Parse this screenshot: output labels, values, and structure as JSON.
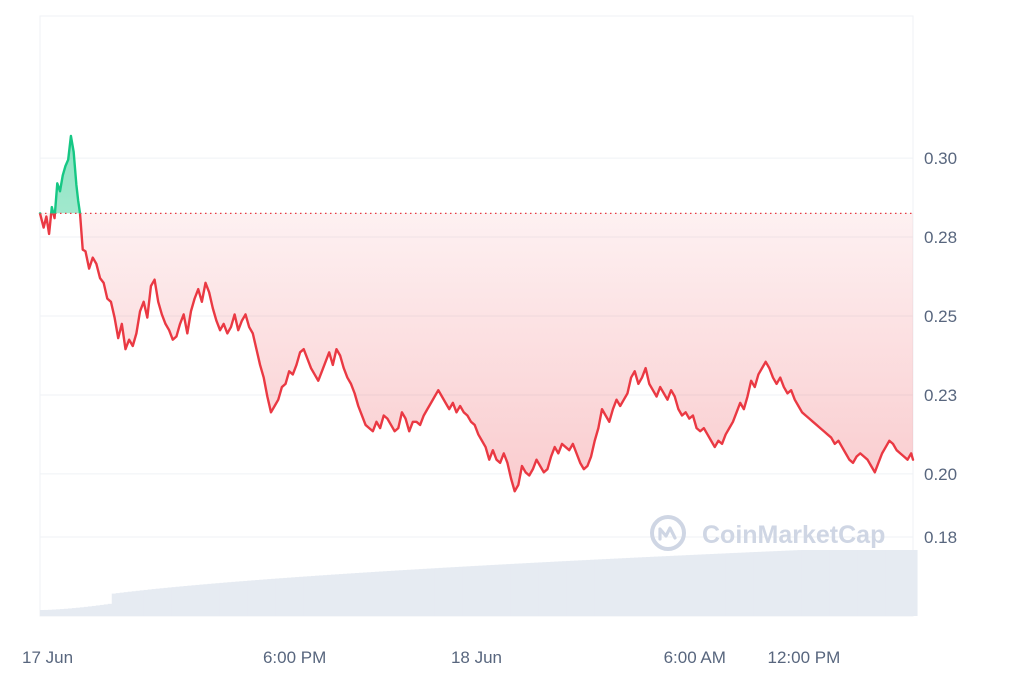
{
  "watermark": {
    "text": "CoinMarketCap"
  },
  "colors": {
    "up": "#16c784",
    "down": "#ea3943",
    "grid": "#eff2f5",
    "axis_text": "#58667e",
    "volume": "#e6ebf2",
    "baseline_dots": "#ea3943"
  },
  "chart_data": {
    "type": "line",
    "title": "",
    "xlabel": "",
    "ylabel": "",
    "baseline": 0.2825,
    "ylim": [
      0.155,
      0.345
    ],
    "xlim": [
      0,
      48
    ],
    "grid": true,
    "y_ticks": [
      {
        "value": 0.18,
        "label": "0.18"
      },
      {
        "value": 0.2,
        "label": "0.20"
      },
      {
        "value": 0.225,
        "label": "0.23"
      },
      {
        "value": 0.25,
        "label": "0.25"
      },
      {
        "value": 0.275,
        "label": "0.28"
      },
      {
        "value": 0.3,
        "label": "0.30"
      }
    ],
    "x_ticks": [
      {
        "value": 0,
        "label": "17 Jun"
      },
      {
        "value": 14,
        "label": "6:00 PM"
      },
      {
        "value": 24,
        "label": "18 Jun"
      },
      {
        "value": 36,
        "label": "6:00 AM"
      },
      {
        "value": 42,
        "label": "12:00 PM"
      }
    ],
    "series": [
      {
        "x": [
          0,
          0.2,
          0.35,
          0.5,
          0.65,
          0.8,
          0.95,
          1.1,
          1.25,
          1.4,
          1.55,
          1.7,
          1.85,
          2.0,
          2.1,
          2.2,
          2.35,
          2.5,
          2.7,
          2.9,
          3.1,
          3.3,
          3.5,
          3.7,
          3.9,
          4.1,
          4.3,
          4.5,
          4.7,
          4.9,
          5.1,
          5.3,
          5.5,
          5.7,
          5.9,
          6.1,
          6.3,
          6.5,
          6.7,
          6.9,
          7.1,
          7.3,
          7.5,
          7.7,
          7.9,
          8.1,
          8.3,
          8.5,
          8.7,
          8.9,
          9.1,
          9.3,
          9.5,
          9.7,
          9.9,
          10.1,
          10.3,
          10.5,
          10.7,
          10.9,
          11.1,
          11.3,
          11.5,
          11.7,
          11.9,
          12.1,
          12.3,
          12.5,
          12.7,
          12.9,
          13.1,
          13.3,
          13.5,
          13.7,
          13.9,
          14.1,
          14.3,
          14.5,
          14.7,
          14.9,
          15.1,
          15.3,
          15.5,
          15.7,
          15.9,
          16.1,
          16.3,
          16.5,
          16.7,
          16.9,
          17.1,
          17.3,
          17.5,
          17.7,
          17.9,
          18.1,
          18.3,
          18.5,
          18.7,
          18.9,
          19.1,
          19.3,
          19.5,
          19.7,
          19.9,
          20.1,
          20.3,
          20.5,
          20.7,
          20.9,
          21.1,
          21.3,
          21.5,
          21.7,
          21.9,
          22.1,
          22.3,
          22.5,
          22.7,
          22.9,
          23.1,
          23.3,
          23.5,
          23.7,
          23.9,
          24.1,
          24.3,
          24.5,
          24.7,
          24.9,
          25.1,
          25.3,
          25.5,
          25.7,
          25.9,
          26.1,
          26.3,
          26.5,
          26.7,
          26.9,
          27.1,
          27.3,
          27.5,
          27.7,
          27.9,
          28.1,
          28.3,
          28.5,
          28.7,
          28.9,
          29.1,
          29.3,
          29.5,
          29.7,
          29.9,
          30.1,
          30.3,
          30.5,
          30.7,
          30.9,
          31.1,
          31.3,
          31.5,
          31.7,
          31.9,
          32.1,
          32.3,
          32.5,
          32.7,
          32.9,
          33.1,
          33.3,
          33.5,
          33.7,
          33.9,
          34.1,
          34.3,
          34.5,
          34.7,
          34.9,
          35.1,
          35.3,
          35.5,
          35.7,
          35.9,
          36.1,
          36.3,
          36.5,
          36.7,
          36.9,
          37.1,
          37.3,
          37.5,
          37.7,
          37.9,
          38.1,
          38.3,
          38.5,
          38.7,
          38.9,
          39.1,
          39.3,
          39.5,
          39.7,
          39.9,
          40.1,
          40.3,
          40.5,
          40.7,
          40.9,
          41.1,
          41.3,
          41.5,
          41.7,
          41.9,
          42.1,
          42.3,
          42.5,
          42.7,
          42.9,
          43.1,
          43.3,
          43.5,
          43.7,
          43.9,
          44.1,
          44.3,
          44.5,
          44.7,
          44.9,
          45.1,
          45.3,
          45.5,
          45.7,
          45.9,
          46.1,
          46.3,
          46.5,
          46.7,
          46.9,
          47.1,
          47.3,
          47.5,
          47.7,
          47.9,
          48
        ],
        "values": [
          0.2825,
          0.278,
          0.2815,
          0.276,
          0.2845,
          0.281,
          0.292,
          0.2895,
          0.2945,
          0.2975,
          0.2995,
          0.307,
          0.302,
          0.2915,
          0.2865,
          0.2825,
          0.271,
          0.2705,
          0.265,
          0.2685,
          0.2665,
          0.262,
          0.2605,
          0.2555,
          0.2545,
          0.2495,
          0.243,
          0.2475,
          0.2395,
          0.2425,
          0.2405,
          0.2445,
          0.2515,
          0.2545,
          0.2495,
          0.2595,
          0.2615,
          0.2545,
          0.2505,
          0.2475,
          0.2455,
          0.2425,
          0.2435,
          0.2475,
          0.2505,
          0.2445,
          0.2515,
          0.2555,
          0.2585,
          0.2545,
          0.2605,
          0.2575,
          0.2525,
          0.2485,
          0.2455,
          0.2475,
          0.2445,
          0.2465,
          0.2505,
          0.2455,
          0.2485,
          0.2505,
          0.2465,
          0.2445,
          0.2395,
          0.2345,
          0.2305,
          0.2245,
          0.2195,
          0.2215,
          0.2235,
          0.2275,
          0.2285,
          0.2325,
          0.2315,
          0.2345,
          0.2385,
          0.2395,
          0.2365,
          0.2335,
          0.2315,
          0.2295,
          0.2325,
          0.2355,
          0.2385,
          0.2345,
          0.2395,
          0.2375,
          0.2335,
          0.2305,
          0.2285,
          0.2255,
          0.2215,
          0.2185,
          0.2155,
          0.2145,
          0.2135,
          0.2165,
          0.2145,
          0.2185,
          0.2175,
          0.2155,
          0.2135,
          0.2145,
          0.2195,
          0.2175,
          0.2135,
          0.2165,
          0.2165,
          0.2155,
          0.2185,
          0.2205,
          0.2225,
          0.2245,
          0.2265,
          0.2245,
          0.2225,
          0.2205,
          0.2225,
          0.2195,
          0.2215,
          0.2195,
          0.2185,
          0.2165,
          0.2155,
          0.2125,
          0.2105,
          0.2085,
          0.2045,
          0.2075,
          0.2045,
          0.2035,
          0.2065,
          0.2035,
          0.1985,
          0.1945,
          0.1965,
          0.2025,
          0.2005,
          0.1995,
          0.2015,
          0.2045,
          0.2025,
          0.2005,
          0.2015,
          0.2055,
          0.2085,
          0.2065,
          0.2095,
          0.2085,
          0.2075,
          0.2095,
          0.2065,
          0.2035,
          0.2015,
          0.2025,
          0.2055,
          0.2105,
          0.2145,
          0.2205,
          0.2185,
          0.2165,
          0.2205,
          0.2235,
          0.2215,
          0.2235,
          0.2255,
          0.2305,
          0.2325,
          0.2285,
          0.2305,
          0.2335,
          0.2285,
          0.2265,
          0.2245,
          0.2275,
          0.2255,
          0.2235,
          0.2265,
          0.2245,
          0.2205,
          0.2185,
          0.2195,
          0.2175,
          0.2185,
          0.2145,
          0.2135,
          0.2145,
          0.2125,
          0.2105,
          0.2085,
          0.2105,
          0.2095,
          0.2125,
          0.2145,
          0.2165,
          0.2195,
          0.2225,
          0.2205,
          0.2245,
          0.2295,
          0.2275,
          0.2315,
          0.2335,
          0.2355,
          0.2335,
          0.2305,
          0.2285,
          0.2305,
          0.2275,
          0.2255,
          0.2265,
          0.2235,
          0.2215,
          0.2195,
          0.2185,
          0.2175,
          0.2165,
          0.2155,
          0.2145,
          0.2135,
          0.2125,
          0.2115,
          0.2095,
          0.2105,
          0.2085,
          0.2065,
          0.2045,
          0.2035,
          0.2055,
          0.2065,
          0.2055,
          0.2045,
          0.2025,
          0.2005,
          0.2035,
          0.2065,
          0.2085,
          0.2105,
          0.2095,
          0.2075,
          0.2065,
          0.2055,
          0.2045,
          0.2065,
          0.2045
        ]
      }
    ]
  }
}
